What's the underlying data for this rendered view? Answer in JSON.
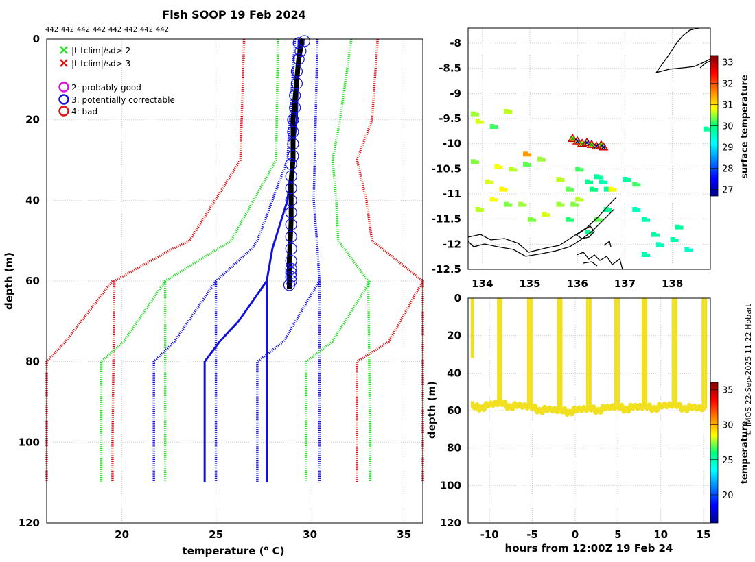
{
  "title": "Fish SOOP 19 Feb 2024",
  "copyright": "© IMOS 22-Sep-2025 11:22 Hobart",
  "colors": {
    "green": "#22dd22",
    "red": "#dd1111",
    "blue": "#1111dd",
    "black": "#000000",
    "magenta": "#dd11dd",
    "yellow": "#f0e020",
    "grid": "#cccccc"
  },
  "chart_data": [
    {
      "id": "profile",
      "type": "line",
      "count_labels": [
        "442",
        "442",
        "442",
        "442",
        "442",
        "442",
        "442",
        "442"
      ],
      "xlabel": "temperature (° C)",
      "ylabel": "depth (m)",
      "xlim": [
        16,
        36
      ],
      "ylim": [
        120,
        0
      ],
      "xticks": [
        20,
        25,
        30,
        35
      ],
      "yticks": [
        0,
        20,
        40,
        60,
        80,
        100,
        120
      ],
      "legend": [
        {
          "marker": "x",
          "color": "green",
          "label": "|t-tclim|/sd> 2"
        },
        {
          "marker": "x",
          "color": "red",
          "label": "|t-tclim|/sd> 3"
        },
        {
          "marker": "o",
          "color": "magenta",
          "label": "2: probably good"
        },
        {
          "marker": "o",
          "color": "blue",
          "label": "3: potentially correctable"
        },
        {
          "marker": "o",
          "color": "red",
          "label": "4: bad"
        }
      ],
      "series": [
        {
          "name": "clim -3sd",
          "color": "red",
          "style": "dotted",
          "x": [
            26.5,
            26.3,
            23.6,
            22.7,
            19.6,
            19.5,
            19.5
          ],
          "y": [
            0,
            30,
            50,
            52,
            60,
            100,
            110
          ]
        },
        {
          "name": "clim -3sd outer",
          "color": "red",
          "style": "dotted",
          "x": [
            19.5,
            17.0,
            16.0,
            16.0
          ],
          "y": [
            60,
            75,
            80,
            110
          ]
        },
        {
          "name": "clim -2sd",
          "color": "green",
          "style": "dotted",
          "x": [
            28.3,
            28.2,
            25.8,
            25.1,
            22.3,
            22.3,
            22.3
          ],
          "y": [
            0,
            30,
            50,
            52,
            60,
            100,
            110
          ]
        },
        {
          "name": "clim -2sd outer",
          "color": "green",
          "style": "dotted",
          "x": [
            22.3,
            20.1,
            18.9,
            18.9
          ],
          "y": [
            60,
            75,
            80,
            110
          ]
        },
        {
          "name": "clim -1sd",
          "color": "blue",
          "style": "dotted",
          "x": [
            29.2,
            28.8,
            27.2,
            26.9,
            25.0,
            25.0,
            25.0
          ],
          "y": [
            0,
            30,
            50,
            52,
            60,
            100,
            110
          ]
        },
        {
          "name": "clim -1sd outer",
          "color": "blue",
          "style": "dotted",
          "x": [
            25.0,
            22.8,
            21.7,
            21.7
          ],
          "y": [
            60,
            75,
            80,
            110
          ]
        },
        {
          "name": "clim mean",
          "color": "blue",
          "style": "solid",
          "x": [
            29.4,
            29.3,
            28.8,
            28.0,
            27.7,
            27.7,
            27.7,
            27.7
          ],
          "y": [
            0,
            20,
            40,
            52,
            60,
            80,
            100,
            110
          ]
        },
        {
          "name": "clim mean outer",
          "color": "blue",
          "style": "solid",
          "x": [
            27.7,
            26.2,
            25.2,
            24.4,
            24.4
          ],
          "y": [
            60,
            70,
            75,
            80,
            110
          ]
        },
        {
          "name": "clim +1sd",
          "color": "blue",
          "style": "dotted",
          "x": [
            30.4,
            30.3,
            30.2,
            30.4,
            30.5,
            30.5,
            30.5
          ],
          "y": [
            0,
            20,
            40,
            52,
            60,
            100,
            110
          ]
        },
        {
          "name": "clim +1sd lower",
          "color": "blue",
          "style": "dotted",
          "x": [
            30.5,
            28.6,
            27.2,
            27.2
          ],
          "y": [
            60,
            75,
            80,
            110
          ]
        },
        {
          "name": "clim +2sd",
          "color": "green",
          "style": "dotted",
          "x": [
            32.2,
            31.6,
            31.2,
            31.4,
            31.5,
            33.1,
            33.2,
            33.2
          ],
          "y": [
            0,
            20,
            30,
            40,
            50,
            60,
            100,
            110
          ]
        },
        {
          "name": "clim +2sd lower",
          "color": "green",
          "style": "dotted",
          "x": [
            33.2,
            31.2,
            29.8,
            29.8
          ],
          "y": [
            60,
            75,
            80,
            110
          ]
        },
        {
          "name": "clim +3sd",
          "color": "red",
          "style": "dotted",
          "x": [
            33.6,
            33.3,
            32.5,
            33.0,
            33.3,
            36.0,
            36.0,
            36.0
          ],
          "y": [
            0,
            20,
            30,
            40,
            50,
            60,
            100,
            110
          ]
        },
        {
          "name": "clim +3sd lower",
          "color": "red",
          "style": "dotted",
          "x": [
            36.0,
            34.2,
            32.5,
            32.5
          ],
          "y": [
            60,
            75,
            80,
            110
          ]
        },
        {
          "name": "observed profiles",
          "color": "black",
          "style": "solid",
          "x": [
            29.6,
            29.4,
            29.3,
            29.2,
            29.1,
            29.1,
            29.1,
            29.0,
            29.0,
            29.0,
            28.9,
            28.9
          ],
          "y": [
            0,
            5,
            10,
            15,
            20,
            25,
            30,
            35,
            40,
            45,
            55,
            62
          ]
        }
      ],
      "qc_circles": {
        "color": "blue",
        "temperature": [
          29.7,
          29.4,
          29.5,
          29.4,
          29.3,
          29.3,
          29.2,
          29.2,
          29.1,
          29.1,
          29.1,
          29.1,
          29.0,
          29.0,
          29.0,
          29.0,
          29.0,
          29.0,
          29.0,
          29.0,
          29.0,
          29.0,
          29.0,
          29.0,
          29.0,
          28.9
        ],
        "depth": [
          0.5,
          1,
          3,
          5,
          8,
          11,
          14,
          17,
          20,
          23,
          26,
          29,
          31,
          34,
          37,
          40,
          43,
          46,
          49,
          52,
          55,
          57,
          58,
          59,
          60,
          61
        ]
      }
    },
    {
      "id": "map",
      "type": "scatter",
      "xlim": [
        133.7,
        138.8
      ],
      "ylim": [
        -12.5,
        -7.7
      ],
      "xticks": [
        134,
        135,
        136,
        137,
        138
      ],
      "yticks": [
        -8,
        -8.5,
        -9,
        -9.5,
        -10,
        -10.5,
        -11,
        -11.5,
        -12,
        -12.5
      ],
      "colorbar": {
        "label": "surface temperature",
        "min": 26.7,
        "max": 33.3,
        "ticks": [
          27,
          28,
          29,
          30,
          31,
          32,
          33
        ]
      },
      "track": [
        {
          "lon": 135.9,
          "lat": -9.9
        },
        {
          "lon": 136.0,
          "lat": -9.95
        },
        {
          "lon": 136.1,
          "lat": -10.0
        },
        {
          "lon": 136.2,
          "lat": -9.98
        },
        {
          "lon": 136.3,
          "lat": -10.02
        },
        {
          "lon": 136.4,
          "lat": -10.05
        },
        {
          "lon": 136.5,
          "lat": -10.03
        },
        {
          "lon": 136.55,
          "lat": -10.07
        }
      ],
      "sst_cells": [
        {
          "lon": 133.8,
          "lat": -9.4,
          "t": 30.5
        },
        {
          "lon": 133.9,
          "lat": -9.55,
          "t": 30.7
        },
        {
          "lon": 134.2,
          "lat": -9.65,
          "t": 30.2
        },
        {
          "lon": 134.5,
          "lat": -9.35,
          "t": 30.6
        },
        {
          "lon": 133.8,
          "lat": -10.35,
          "t": 30.4
        },
        {
          "lon": 134.3,
          "lat": -10.45,
          "t": 30.8
        },
        {
          "lon": 134.6,
          "lat": -10.5,
          "t": 30.6
        },
        {
          "lon": 134.9,
          "lat": -10.4,
          "t": 30.3
        },
        {
          "lon": 135.2,
          "lat": -10.3,
          "t": 30.5
        },
        {
          "lon": 134.1,
          "lat": -10.75,
          "t": 30.7
        },
        {
          "lon": 134.4,
          "lat": -10.9,
          "t": 30.9
        },
        {
          "lon": 134.2,
          "lat": -11.1,
          "t": 30.8
        },
        {
          "lon": 133.9,
          "lat": -11.3,
          "t": 30.6
        },
        {
          "lon": 134.5,
          "lat": -11.2,
          "t": 30.4
        },
        {
          "lon": 134.8,
          "lat": -11.2,
          "t": 30.5
        },
        {
          "lon": 135.3,
          "lat": -11.4,
          "t": 30.7
        },
        {
          "lon": 135.6,
          "lat": -10.7,
          "t": 30.6
        },
        {
          "lon": 135.8,
          "lat": -10.9,
          "t": 30.3
        },
        {
          "lon": 135.6,
          "lat": -11.2,
          "t": 30.5
        },
        {
          "lon": 135.9,
          "lat": -11.2,
          "t": 30.4
        },
        {
          "lon": 136.0,
          "lat": -11.1,
          "t": 30.6
        },
        {
          "lon": 136.2,
          "lat": -10.75,
          "t": 29.9
        },
        {
          "lon": 136.4,
          "lat": -10.65,
          "t": 29.8
        },
        {
          "lon": 136.5,
          "lat": -10.75,
          "t": 29.7
        },
        {
          "lon": 136.3,
          "lat": -10.9,
          "t": 30.0
        },
        {
          "lon": 136.6,
          "lat": -10.9,
          "t": 29.8
        },
        {
          "lon": 136.0,
          "lat": -10.5,
          "t": 30.2
        },
        {
          "lon": 137.0,
          "lat": -10.7,
          "t": 29.8
        },
        {
          "lon": 137.2,
          "lat": -10.8,
          "t": 30.2
        },
        {
          "lon": 136.6,
          "lat": -11.3,
          "t": 29.9
        },
        {
          "lon": 137.2,
          "lat": -11.3,
          "t": 29.6
        },
        {
          "lon": 137.4,
          "lat": -11.5,
          "t": 29.7
        },
        {
          "lon": 137.6,
          "lat": -11.8,
          "t": 29.8
        },
        {
          "lon": 137.7,
          "lat": -12.0,
          "t": 29.6
        },
        {
          "lon": 138.0,
          "lat": -11.9,
          "t": 29.7
        },
        {
          "lon": 138.3,
          "lat": -12.1,
          "t": 29.5
        },
        {
          "lon": 138.1,
          "lat": -11.65,
          "t": 29.8
        },
        {
          "lon": 136.4,
          "lat": -11.5,
          "t": 30.3
        },
        {
          "lon": 136.2,
          "lat": -11.75,
          "t": 29.9
        },
        {
          "lon": 135.8,
          "lat": -11.5,
          "t": 30.1
        },
        {
          "lon": 137.4,
          "lat": -12.2,
          "t": 29.7
        },
        {
          "lon": 138.7,
          "lat": -9.7,
          "t": 29.8
        },
        {
          "lon": 135.0,
          "lat": -11.5,
          "t": 30.4
        },
        {
          "lon": 134.9,
          "lat": -10.2,
          "t": 31.5
        },
        {
          "lon": 136.7,
          "lat": -10.9,
          "t": 30.8
        }
      ]
    },
    {
      "id": "section",
      "type": "scatter",
      "xlabel": "hours from 12:00Z 19 Feb 24",
      "ylabel": "depth (m)",
      "xlim": [
        -12.5,
        15.8
      ],
      "ylim": [
        120,
        0
      ],
      "xticks": [
        -10,
        -5,
        0,
        5,
        10,
        15
      ],
      "yticks": [
        0,
        20,
        40,
        60,
        80,
        100,
        120
      ],
      "colorbar": {
        "label": "temperature",
        "min": 16,
        "max": 36,
        "ticks": [
          20,
          25,
          30,
          35
        ]
      },
      "cast_hours": [
        -12.0,
        -8.8,
        -5.3,
        -1.8,
        1.6,
        4.9,
        8.1,
        11.6,
        15.1
      ],
      "cast_bottom_depth": [
        58,
        56,
        58,
        60,
        59,
        58,
        58,
        57,
        59
      ],
      "first_cast_gap_depth": [
        32,
        55
      ]
    }
  ]
}
